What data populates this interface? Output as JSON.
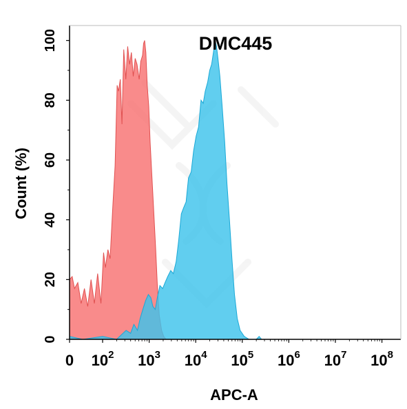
{
  "chart_data": {
    "type": "area",
    "title": "DMC445",
    "xlabel": "APC-A",
    "ylabel": "Count  (%)",
    "x_scale": "biexponential",
    "xlim": [
      0,
      100000000
    ],
    "ylim": [
      0,
      105
    ],
    "yticks": [
      0,
      20,
      40,
      60,
      80,
      100
    ],
    "xticks": [
      {
        "value": 0,
        "label": "0",
        "base": "0",
        "exp": ""
      },
      {
        "value": 100,
        "label": "10^2",
        "base": "10",
        "exp": "2"
      },
      {
        "value": 1000,
        "label": "10^3",
        "base": "10",
        "exp": "3"
      },
      {
        "value": 10000,
        "label": "10^4",
        "base": "10",
        "exp": "4"
      },
      {
        "value": 100000,
        "label": "10^5",
        "base": "10",
        "exp": "5"
      },
      {
        "value": 1000000,
        "label": "10^6",
        "base": "10",
        "exp": "6"
      },
      {
        "value": 10000000,
        "label": "10^7",
        "base": "10",
        "exp": "7"
      },
      {
        "value": 100000000,
        "label": "10^8",
        "base": "10",
        "exp": "8"
      }
    ],
    "grid": false,
    "series": [
      {
        "color": "#f87171",
        "stroke": "#e05050",
        "points": [
          [
            0,
            20
          ],
          [
            8,
            21
          ],
          [
            15,
            17
          ],
          [
            25,
            19
          ],
          [
            35,
            12
          ],
          [
            45,
            17
          ],
          [
            55,
            11
          ],
          [
            65,
            20
          ],
          [
            75,
            12
          ],
          [
            85,
            22
          ],
          [
            95,
            12
          ],
          [
            105,
            29
          ],
          [
            115,
            24
          ],
          [
            130,
            30
          ],
          [
            145,
            27
          ],
          [
            165,
            44
          ],
          [
            185,
            58
          ],
          [
            205,
            85
          ],
          [
            220,
            83
          ],
          [
            240,
            87
          ],
          [
            260,
            72
          ],
          [
            285,
            97
          ],
          [
            315,
            87
          ],
          [
            345,
            98
          ],
          [
            380,
            92
          ],
          [
            415,
            96
          ],
          [
            455,
            88
          ],
          [
            500,
            94
          ],
          [
            550,
            92
          ],
          [
            610,
            87
          ],
          [
            660,
            93
          ],
          [
            720,
            95
          ],
          [
            760,
            99
          ],
          [
            800,
            100
          ],
          [
            850,
            96
          ],
          [
            910,
            85
          ],
          [
            980,
            78
          ],
          [
            1050,
            66
          ],
          [
            1150,
            54
          ],
          [
            1250,
            43
          ],
          [
            1380,
            30
          ],
          [
            1500,
            18
          ],
          [
            1650,
            8
          ],
          [
            1850,
            3
          ],
          [
            2050,
            1
          ],
          [
            2300,
            0
          ]
        ]
      },
      {
        "color": "#3ec3ec",
        "stroke": "#1aa8d6",
        "points": [
          [
            0,
            1
          ],
          [
            40,
            0
          ],
          [
            100,
            1
          ],
          [
            200,
            0
          ],
          [
            320,
            3
          ],
          [
            400,
            2
          ],
          [
            470,
            5
          ],
          [
            560,
            3
          ],
          [
            640,
            7
          ],
          [
            730,
            10
          ],
          [
            840,
            13
          ],
          [
            960,
            15
          ],
          [
            1080,
            14
          ],
          [
            1200,
            11
          ],
          [
            1350,
            10
          ],
          [
            1500,
            14
          ],
          [
            1700,
            18
          ],
          [
            1950,
            17
          ],
          [
            2200,
            19
          ],
          [
            2500,
            21
          ],
          [
            2900,
            23
          ],
          [
            3300,
            22
          ],
          [
            3800,
            26
          ],
          [
            4300,
            33
          ],
          [
            4900,
            42
          ],
          [
            5500,
            44
          ],
          [
            6200,
            46
          ],
          [
            7000,
            54
          ],
          [
            8000,
            56
          ],
          [
            9000,
            63
          ],
          [
            10200,
            68
          ],
          [
            11500,
            71
          ],
          [
            13000,
            80
          ],
          [
            14500,
            79
          ],
          [
            16000,
            83
          ],
          [
            18000,
            86
          ],
          [
            20000,
            90
          ],
          [
            22000,
            92
          ],
          [
            24000,
            96
          ],
          [
            26000,
            100
          ],
          [
            28000,
            98
          ],
          [
            30000,
            94
          ],
          [
            33000,
            88
          ],
          [
            37000,
            78
          ],
          [
            42000,
            66
          ],
          [
            47000,
            52
          ],
          [
            53000,
            40
          ],
          [
            60000,
            27
          ],
          [
            68000,
            15
          ],
          [
            78000,
            7
          ],
          [
            90000,
            3
          ],
          [
            110000,
            1
          ],
          [
            140000,
            0
          ],
          [
            200000,
            0
          ],
          [
            230000,
            1
          ],
          [
            260000,
            0
          ]
        ]
      }
    ]
  }
}
